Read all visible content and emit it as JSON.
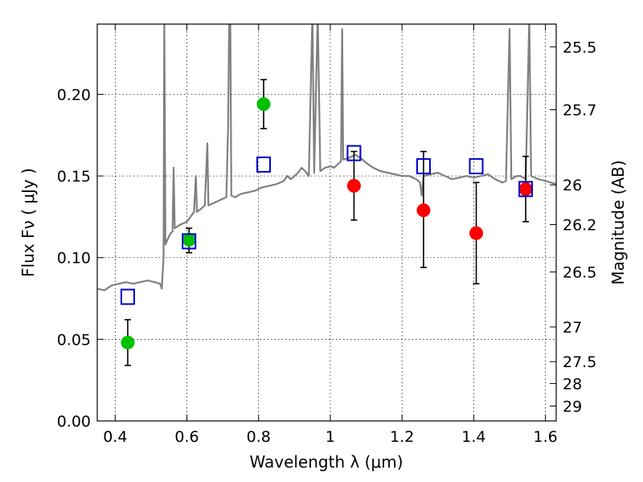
{
  "chart_data": {
    "type": "scatter",
    "title": "",
    "xlabel": "Wavelength  λ (μm)",
    "ylabel": "Flux  Fν  ( μJy )",
    "y2label": "Magnitude (AB)",
    "xlim": [
      0.35,
      1.63
    ],
    "ylim": [
      0.0,
      0.243
    ],
    "grid": true,
    "x_ticks": [
      {
        "value": 0.4,
        "label": "0.4"
      },
      {
        "value": 0.6,
        "label": "0.6"
      },
      {
        "value": 0.8,
        "label": "0.8"
      },
      {
        "value": 1.0,
        "label": "1"
      },
      {
        "value": 1.2,
        "label": "1.2"
      },
      {
        "value": 1.4,
        "label": "1.4"
      },
      {
        "value": 1.6,
        "label": "1.6"
      }
    ],
    "y_ticks": [
      {
        "value": 0.0,
        "label": "0.00"
      },
      {
        "value": 0.05,
        "label": "0.05"
      },
      {
        "value": 0.1,
        "label": "0.10"
      },
      {
        "value": 0.15,
        "label": "0.15"
      },
      {
        "value": 0.2,
        "label": "0.20"
      }
    ],
    "y2_ticks": [
      {
        "value": 25.5,
        "label": "25.5"
      },
      {
        "value": 25.7,
        "label": "25.7"
      },
      {
        "value": 26.0,
        "label": "26"
      },
      {
        "value": 26.2,
        "label": "26.2"
      },
      {
        "value": 26.5,
        "label": "26.5"
      },
      {
        "value": 27.0,
        "label": "27"
      },
      {
        "value": 27.5,
        "label": "27.5"
      },
      {
        "value": 28.0,
        "label": "28"
      },
      {
        "value": 29.0,
        "label": "29"
      }
    ],
    "series": [
      {
        "marker": "circle",
        "color": "#00c000",
        "points": [
          {
            "x": 0.435,
            "y": 0.048,
            "err_low": 0.014,
            "err_high": 0.014
          },
          {
            "x": 0.606,
            "y": 0.111,
            "err_low": 0.008,
            "err_high": 0.007
          },
          {
            "x": 0.814,
            "y": 0.194,
            "err_low": 0.015,
            "err_high": 0.015
          }
        ]
      },
      {
        "marker": "circle",
        "color": "#ff0000",
        "points": [
          {
            "x": 1.066,
            "y": 0.144,
            "err_low": 0.021,
            "err_high": 0.021
          },
          {
            "x": 1.26,
            "y": 0.129,
            "err_low": 0.035,
            "err_high": 0.036
          },
          {
            "x": 1.407,
            "y": 0.115,
            "err_low": 0.031,
            "err_high": 0.031
          },
          {
            "x": 1.545,
            "y": 0.142,
            "err_low": 0.02,
            "err_high": 0.02
          }
        ]
      },
      {
        "marker": "open-square",
        "color": "#0000cc",
        "points": [
          {
            "x": 0.435,
            "y": 0.076
          },
          {
            "x": 0.606,
            "y": 0.11
          },
          {
            "x": 0.814,
            "y": 0.157
          },
          {
            "x": 1.066,
            "y": 0.164
          },
          {
            "x": 1.26,
            "y": 0.156
          },
          {
            "x": 1.407,
            "y": 0.156
          },
          {
            "x": 1.545,
            "y": 0.142
          }
        ]
      },
      {
        "marker": "line",
        "color": "#808080",
        "points": [
          [
            0.35,
            0.081
          ],
          [
            0.37,
            0.08
          ],
          [
            0.39,
            0.083
          ],
          [
            0.41,
            0.084
          ],
          [
            0.43,
            0.085
          ],
          [
            0.45,
            0.084
          ],
          [
            0.47,
            0.085
          ],
          [
            0.49,
            0.086
          ],
          [
            0.51,
            0.085
          ],
          [
            0.525,
            0.084
          ],
          [
            0.53,
            0.081
          ],
          [
            0.535,
            0.1
          ],
          [
            0.537,
            0.25
          ],
          [
            0.54,
            0.108
          ],
          [
            0.548,
            0.112
          ],
          [
            0.555,
            0.115
          ],
          [
            0.56,
            0.116
          ],
          [
            0.563,
            0.155
          ],
          [
            0.566,
            0.118
          ],
          [
            0.58,
            0.12
          ],
          [
            0.59,
            0.121
          ],
          [
            0.6,
            0.122
          ],
          [
            0.61,
            0.125
          ],
          [
            0.62,
            0.128
          ],
          [
            0.625,
            0.15
          ],
          [
            0.628,
            0.128
          ],
          [
            0.64,
            0.13
          ],
          [
            0.65,
            0.132
          ],
          [
            0.657,
            0.17
          ],
          [
            0.66,
            0.132
          ],
          [
            0.67,
            0.133
          ],
          [
            0.68,
            0.134
          ],
          [
            0.69,
            0.135
          ],
          [
            0.7,
            0.136
          ],
          [
            0.71,
            0.137
          ],
          [
            0.715,
            0.18
          ],
          [
            0.718,
            0.25
          ],
          [
            0.721,
            0.25
          ],
          [
            0.724,
            0.138
          ],
          [
            0.735,
            0.137
          ],
          [
            0.75,
            0.139
          ],
          [
            0.77,
            0.14
          ],
          [
            0.79,
            0.141
          ],
          [
            0.81,
            0.143
          ],
          [
            0.83,
            0.144
          ],
          [
            0.85,
            0.145
          ],
          [
            0.87,
            0.147
          ],
          [
            0.88,
            0.15
          ],
          [
            0.89,
            0.148
          ],
          [
            0.9,
            0.15
          ],
          [
            0.91,
            0.152
          ],
          [
            0.92,
            0.155
          ],
          [
            0.93,
            0.153
          ],
          [
            0.94,
            0.15
          ],
          [
            0.95,
            0.25
          ],
          [
            0.955,
            0.152
          ],
          [
            0.965,
            0.25
          ],
          [
            0.972,
            0.153
          ],
          [
            0.985,
            0.155
          ],
          [
            1.0,
            0.156
          ],
          [
            1.01,
            0.155
          ],
          [
            1.02,
            0.157
          ],
          [
            1.03,
            0.159
          ],
          [
            1.033,
            0.24
          ],
          [
            1.036,
            0.16
          ],
          [
            1.05,
            0.161
          ],
          [
            1.07,
            0.163
          ],
          [
            1.09,
            0.16
          ],
          [
            1.1,
            0.158
          ],
          [
            1.12,
            0.155
          ],
          [
            1.14,
            0.153
          ],
          [
            1.16,
            0.152
          ],
          [
            1.18,
            0.151
          ],
          [
            1.2,
            0.15
          ],
          [
            1.22,
            0.15
          ],
          [
            1.23,
            0.149
          ],
          [
            1.24,
            0.148
          ],
          [
            1.25,
            0.146
          ],
          [
            1.255,
            0.138
          ],
          [
            1.26,
            0.15
          ],
          [
            1.28,
            0.151
          ],
          [
            1.3,
            0.152
          ],
          [
            1.32,
            0.15
          ],
          [
            1.34,
            0.148
          ],
          [
            1.36,
            0.149
          ],
          [
            1.38,
            0.15
          ],
          [
            1.4,
            0.149
          ],
          [
            1.42,
            0.15
          ],
          [
            1.44,
            0.151
          ],
          [
            1.46,
            0.148
          ],
          [
            1.48,
            0.146
          ],
          [
            1.49,
            0.147
          ],
          [
            1.5,
            0.24
          ],
          [
            1.505,
            0.148
          ],
          [
            1.52,
            0.15
          ],
          [
            1.53,
            0.15
          ],
          [
            1.545,
            0.148
          ],
          [
            1.555,
            0.247
          ],
          [
            1.56,
            0.15
          ],
          [
            1.58,
            0.148
          ],
          [
            1.6,
            0.147
          ],
          [
            1.615,
            0.146
          ],
          [
            1.63,
            0.145
          ]
        ]
      }
    ]
  }
}
